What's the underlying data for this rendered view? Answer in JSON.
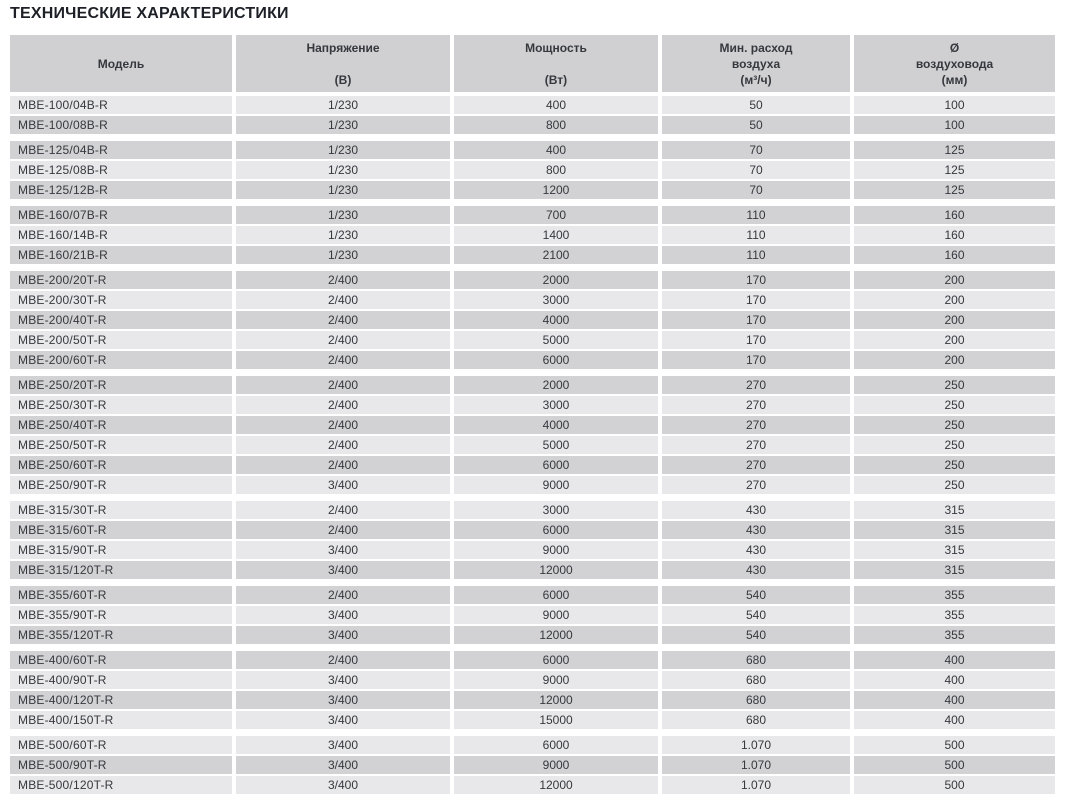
{
  "title": "ТЕХНИЧЕСКИЕ ХАРАКТЕРИСТИКИ",
  "colors": {
    "header_bg": "#d0d0d2",
    "row_dark_bg": "#d2d2d4",
    "row_light_bg": "#e8e8ea",
    "cell_text": "#35383d",
    "title_text": "#1d2127"
  },
  "table": {
    "columns": [
      {
        "key": "model",
        "lines": [
          "Модель"
        ]
      },
      {
        "key": "voltage",
        "lines": [
          "Напряжение",
          "",
          "(В)"
        ]
      },
      {
        "key": "power",
        "lines": [
          "Мощность",
          "",
          "(Вт)"
        ]
      },
      {
        "key": "airflow",
        "lines": [
          "Мин. расход",
          "воздуха",
          "(м³/ч)"
        ]
      },
      {
        "key": "diameter",
        "lines": [
          "Ø",
          "воздуховода",
          "(мм)"
        ]
      }
    ],
    "groups": [
      {
        "rows": [
          [
            "MBE-100/04B-R",
            "1/230",
            "400",
            "50",
            "100"
          ],
          [
            "MBE-100/08B-R",
            "1/230",
            "800",
            "50",
            "100"
          ]
        ]
      },
      {
        "rows": [
          [
            "MBE-125/04B-R",
            "1/230",
            "400",
            "70",
            "125"
          ],
          [
            "MBE-125/08B-R",
            "1/230",
            "800",
            "70",
            "125"
          ],
          [
            "MBE-125/12B-R",
            "1/230",
            "1200",
            "70",
            "125"
          ]
        ]
      },
      {
        "rows": [
          [
            "MBE-160/07B-R",
            "1/230",
            "700",
            "110",
            "160"
          ],
          [
            "MBE-160/14B-R",
            "1/230",
            "1400",
            "110",
            "160"
          ],
          [
            "MBE-160/21B-R",
            "1/230",
            "2100",
            "110",
            "160"
          ]
        ]
      },
      {
        "rows": [
          [
            "MBE-200/20T-R",
            "2/400",
            "2000",
            "170",
            "200"
          ],
          [
            "MBE-200/30T-R",
            "2/400",
            "3000",
            "170",
            "200"
          ],
          [
            "MBE-200/40T-R",
            "2/400",
            "4000",
            "170",
            "200"
          ],
          [
            "MBE-200/50T-R",
            "2/400",
            "5000",
            "170",
            "200"
          ],
          [
            "MBE-200/60T-R",
            "2/400",
            "6000",
            "170",
            "200"
          ]
        ]
      },
      {
        "rows": [
          [
            "MBE-250/20T-R",
            "2/400",
            "2000",
            "270",
            "250"
          ],
          [
            "MBE-250/30T-R",
            "2/400",
            "3000",
            "270",
            "250"
          ],
          [
            "MBE-250/40T-R",
            "2/400",
            "4000",
            "270",
            "250"
          ],
          [
            "MBE-250/50T-R",
            "2/400",
            "5000",
            "270",
            "250"
          ],
          [
            "MBE-250/60T-R",
            "2/400",
            "6000",
            "270",
            "250"
          ],
          [
            "MBE-250/90T-R",
            "3/400",
            "9000",
            "270",
            "250"
          ]
        ]
      },
      {
        "rows": [
          [
            "MBE-315/30T-R",
            "2/400",
            "3000",
            "430",
            "315"
          ],
          [
            "MBE-315/60T-R",
            "2/400",
            "6000",
            "430",
            "315"
          ],
          [
            "MBE-315/90T-R",
            "3/400",
            "9000",
            "430",
            "315"
          ],
          [
            "MBE-315/120T-R",
            "3/400",
            "12000",
            "430",
            "315"
          ]
        ]
      },
      {
        "rows": [
          [
            "MBE-355/60T-R",
            "2/400",
            "6000",
            "540",
            "355"
          ],
          [
            "MBE-355/90T-R",
            "3/400",
            "9000",
            "540",
            "355"
          ],
          [
            "MBE-355/120T-R",
            "3/400",
            "12000",
            "540",
            "355"
          ]
        ]
      },
      {
        "rows": [
          [
            "MBE-400/60T-R",
            "2/400",
            "6000",
            "680",
            "400"
          ],
          [
            "MBE-400/90T-R",
            "3/400",
            "9000",
            "680",
            "400"
          ],
          [
            "MBE-400/120T-R",
            "3/400",
            "12000",
            "680",
            "400"
          ],
          [
            "MBE-400/150T-R",
            "3/400",
            "15000",
            "680",
            "400"
          ]
        ]
      },
      {
        "rows": [
          [
            "MBE-500/60T-R",
            "3/400",
            "6000",
            "1.070",
            "500"
          ],
          [
            "MBE-500/90T-R",
            "3/400",
            "9000",
            "1.070",
            "500"
          ],
          [
            "MBE-500/120T-R",
            "3/400",
            "12000",
            "1.070",
            "500"
          ]
        ]
      }
    ]
  }
}
